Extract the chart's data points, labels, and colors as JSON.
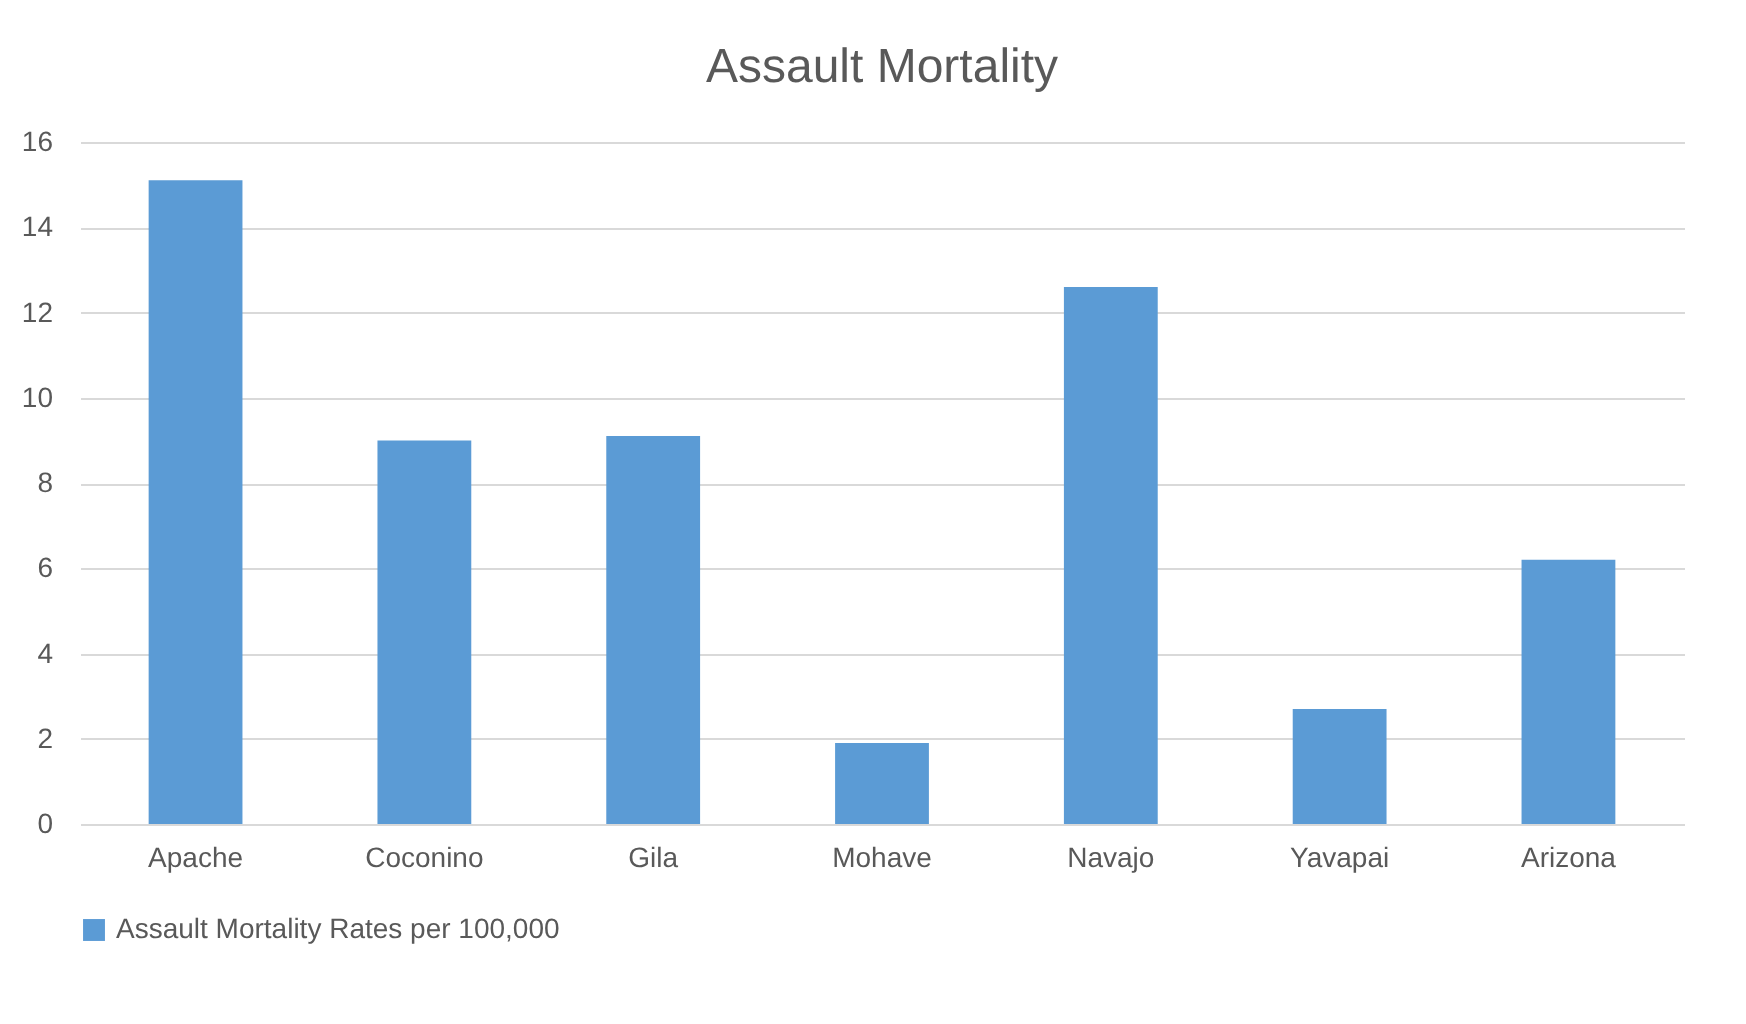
{
  "chart_data": {
    "type": "bar",
    "title": "Assault Mortality",
    "categories": [
      "Apache",
      "Coconino",
      "Gila",
      "Mohave",
      "Navajo",
      "Yavapai",
      "Arizona"
    ],
    "series": [
      {
        "name": "Assault Mortality Rates per 100,000",
        "color": "#5b9bd5",
        "values": [
          15.1,
          9.0,
          9.1,
          1.9,
          12.6,
          2.7,
          6.2
        ]
      }
    ],
    "ylim": [
      0,
      16
    ],
    "yticks": [
      0,
      2,
      4,
      6,
      8,
      10,
      12,
      14,
      16
    ],
    "grid": "y",
    "legend": "bottom"
  }
}
